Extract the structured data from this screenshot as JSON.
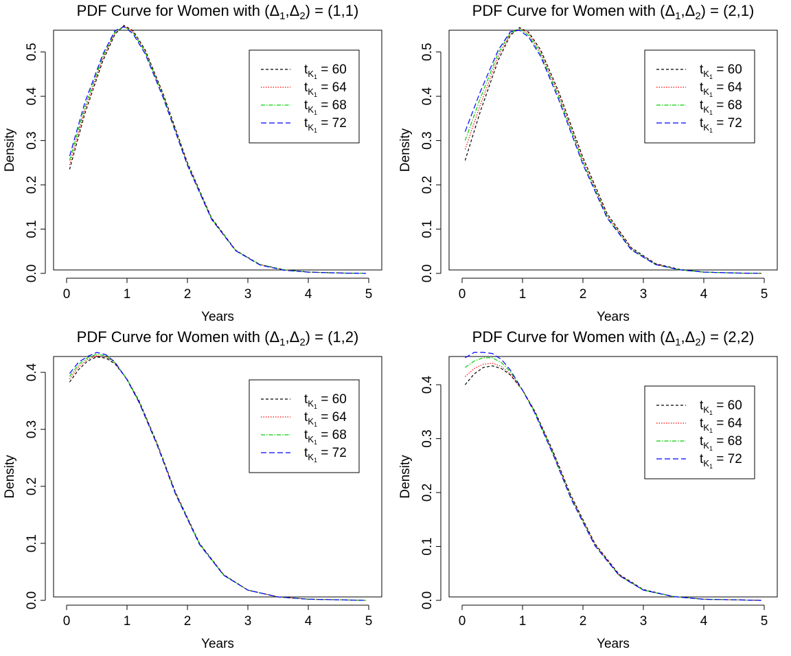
{
  "chart_data": [
    {
      "type": "line",
      "title": "PDF Curve for Women with (Δ1,Δ2) = (1,1)",
      "xlabel": "Years",
      "ylabel": "Density",
      "xlim": [
        0,
        5
      ],
      "ylim": [
        0,
        0.56
      ],
      "xticks": [
        0,
        1,
        2,
        3,
        4,
        5
      ],
      "xtick_labels": [
        "0",
        "1",
        "2",
        "3",
        "4",
        "5"
      ],
      "yticks": [
        0.0,
        0.1,
        0.2,
        0.3,
        0.4,
        0.5
      ],
      "ytick_labels": [
        "0.0",
        "0.1",
        "0.2",
        "0.3",
        "0.4",
        "0.5"
      ],
      "legend_position": "top-right",
      "x": [
        0.05,
        0.3,
        0.6,
        0.8,
        0.95,
        1.1,
        1.3,
        1.6,
        2.0,
        2.4,
        2.8,
        3.2,
        3.6,
        4.0,
        4.5,
        4.95
      ],
      "series": [
        {
          "name": "t_{K_1} = 60",
          "values": [
            0.235,
            0.36,
            0.48,
            0.54,
            0.56,
            0.548,
            0.505,
            0.405,
            0.25,
            0.125,
            0.052,
            0.02,
            0.008,
            0.003,
            0.001,
            0.0
          ]
        },
        {
          "name": "t_{K_1} = 64",
          "values": [
            0.245,
            0.368,
            0.485,
            0.542,
            0.559,
            0.546,
            0.502,
            0.402,
            0.248,
            0.124,
            0.052,
            0.02,
            0.008,
            0.003,
            0.001,
            0.0
          ]
        },
        {
          "name": "t_{K_1} = 68",
          "values": [
            0.255,
            0.375,
            0.49,
            0.545,
            0.558,
            0.544,
            0.5,
            0.4,
            0.246,
            0.123,
            0.051,
            0.02,
            0.008,
            0.003,
            0.001,
            0.0
          ]
        },
        {
          "name": "t_{K_1} = 72",
          "values": [
            0.265,
            0.385,
            0.495,
            0.548,
            0.557,
            0.541,
            0.496,
            0.396,
            0.244,
            0.122,
            0.051,
            0.019,
            0.007,
            0.003,
            0.001,
            0.0
          ]
        }
      ]
    },
    {
      "type": "line",
      "title": "PDF Curve for Women with (Δ1,Δ2) = (2,1)",
      "xlabel": "Years",
      "ylabel": "Density",
      "xlim": [
        0,
        5
      ],
      "ylim": [
        0,
        0.56
      ],
      "xticks": [
        0,
        1,
        2,
        3,
        4,
        5
      ],
      "xtick_labels": [
        "0",
        "1",
        "2",
        "3",
        "4",
        "5"
      ],
      "yticks": [
        0.0,
        0.1,
        0.2,
        0.3,
        0.4,
        0.5
      ],
      "ytick_labels": [
        "0.0",
        "0.1",
        "0.2",
        "0.3",
        "0.4",
        "0.5"
      ],
      "legend_position": "top-right",
      "x": [
        0.05,
        0.3,
        0.6,
        0.8,
        0.95,
        1.1,
        1.3,
        1.6,
        2.0,
        2.4,
        2.8,
        3.2,
        3.6,
        4.0,
        4.5,
        4.95
      ],
      "series": [
        {
          "name": "t_{K_1} = 60",
          "values": [
            0.255,
            0.365,
            0.482,
            0.538,
            0.555,
            0.545,
            0.505,
            0.41,
            0.262,
            0.135,
            0.058,
            0.022,
            0.009,
            0.003,
            0.001,
            0.0
          ]
        },
        {
          "name": "t_{K_1} = 64",
          "values": [
            0.28,
            0.38,
            0.49,
            0.541,
            0.553,
            0.542,
            0.5,
            0.404,
            0.256,
            0.131,
            0.056,
            0.021,
            0.008,
            0.003,
            0.001,
            0.0
          ]
        },
        {
          "name": "t_{K_1} = 68",
          "values": [
            0.3,
            0.395,
            0.498,
            0.544,
            0.551,
            0.538,
            0.495,
            0.398,
            0.251,
            0.128,
            0.054,
            0.02,
            0.008,
            0.003,
            0.001,
            0.0
          ]
        },
        {
          "name": "t_{K_1} = 72",
          "values": [
            0.32,
            0.41,
            0.505,
            0.546,
            0.549,
            0.534,
            0.49,
            0.392,
            0.246,
            0.125,
            0.053,
            0.02,
            0.008,
            0.003,
            0.001,
            0.0
          ]
        }
      ]
    },
    {
      "type": "line",
      "title": "PDF Curve for Women with (Δ1,Δ2) = (1,2)",
      "xlabel": "Years",
      "ylabel": "Density",
      "xlim": [
        0,
        5
      ],
      "ylim": [
        0,
        0.435
      ],
      "xticks": [
        0,
        1,
        2,
        3,
        4,
        5
      ],
      "xtick_labels": [
        "0",
        "1",
        "2",
        "3",
        "4",
        "5"
      ],
      "yticks": [
        0.0,
        0.1,
        0.2,
        0.3,
        0.4
      ],
      "ytick_labels": [
        "0.0",
        "0.1",
        "0.2",
        "0.3",
        "0.4"
      ],
      "legend_position": "top-right",
      "x": [
        0.05,
        0.2,
        0.35,
        0.5,
        0.65,
        0.8,
        1.0,
        1.2,
        1.5,
        1.8,
        2.2,
        2.6,
        3.0,
        3.5,
        4.0,
        4.5,
        4.95
      ],
      "series": [
        {
          "name": "t_{K_1} = 60",
          "values": [
            0.383,
            0.405,
            0.42,
            0.427,
            0.425,
            0.415,
            0.388,
            0.35,
            0.275,
            0.19,
            0.1,
            0.045,
            0.018,
            0.006,
            0.002,
            0.001,
            0.0
          ]
        },
        {
          "name": "t_{K_1} = 64",
          "values": [
            0.388,
            0.41,
            0.423,
            0.429,
            0.427,
            0.416,
            0.388,
            0.349,
            0.274,
            0.189,
            0.099,
            0.045,
            0.018,
            0.006,
            0.002,
            0.001,
            0.0
          ]
        },
        {
          "name": "t_{K_1} = 68",
          "values": [
            0.393,
            0.414,
            0.426,
            0.432,
            0.429,
            0.417,
            0.388,
            0.348,
            0.273,
            0.188,
            0.099,
            0.044,
            0.018,
            0.006,
            0.002,
            0.001,
            0.0
          ]
        },
        {
          "name": "t_{K_1} = 72",
          "values": [
            0.398,
            0.418,
            0.428,
            0.435,
            0.431,
            0.418,
            0.387,
            0.347,
            0.272,
            0.187,
            0.098,
            0.044,
            0.018,
            0.006,
            0.002,
            0.001,
            0.0
          ]
        }
      ]
    },
    {
      "type": "line",
      "title": "PDF Curve for Women with (Δ1,Δ2) = (2,2)",
      "xlabel": "Years",
      "ylabel": "Density",
      "xlim": [
        0,
        5
      ],
      "ylim": [
        0,
        0.46
      ],
      "xticks": [
        0,
        1,
        2,
        3,
        4,
        5
      ],
      "xtick_labels": [
        "0",
        "1",
        "2",
        "3",
        "4",
        "5"
      ],
      "yticks": [
        0.0,
        0.1,
        0.2,
        0.3,
        0.4
      ],
      "ytick_labels": [
        "0.0",
        "0.1",
        "0.2",
        "0.3",
        "0.4"
      ],
      "legend_position": "top-right",
      "x": [
        0.05,
        0.2,
        0.35,
        0.5,
        0.65,
        0.8,
        1.0,
        1.2,
        1.5,
        1.8,
        2.2,
        2.6,
        3.0,
        3.5,
        4.0,
        4.5,
        4.95
      ],
      "series": [
        {
          "name": "t_{K_1} = 60",
          "values": [
            0.4,
            0.42,
            0.432,
            0.435,
            0.43,
            0.418,
            0.39,
            0.352,
            0.278,
            0.195,
            0.105,
            0.048,
            0.02,
            0.007,
            0.002,
            0.001,
            0.0
          ]
        },
        {
          "name": "t_{K_1} = 64",
          "values": [
            0.415,
            0.43,
            0.438,
            0.44,
            0.434,
            0.42,
            0.39,
            0.351,
            0.276,
            0.193,
            0.104,
            0.047,
            0.019,
            0.007,
            0.002,
            0.001,
            0.0
          ]
        },
        {
          "name": "t_{K_1} = 68",
          "values": [
            0.432,
            0.444,
            0.45,
            0.45,
            0.441,
            0.424,
            0.39,
            0.35,
            0.274,
            0.191,
            0.102,
            0.046,
            0.019,
            0.007,
            0.002,
            0.001,
            0.0
          ]
        },
        {
          "name": "t_{K_1} = 72",
          "values": [
            0.45,
            0.46,
            0.46,
            0.458,
            0.447,
            0.427,
            0.39,
            0.348,
            0.272,
            0.189,
            0.101,
            0.046,
            0.019,
            0.007,
            0.002,
            0.001,
            0.0
          ]
        }
      ]
    }
  ],
  "style": {
    "series_colors": [
      "#000000",
      "#ff0000",
      "#00cd00",
      "#0000ff"
    ],
    "series_dashes": [
      "dashed",
      "dotted",
      "dashdot",
      "longdash"
    ]
  }
}
